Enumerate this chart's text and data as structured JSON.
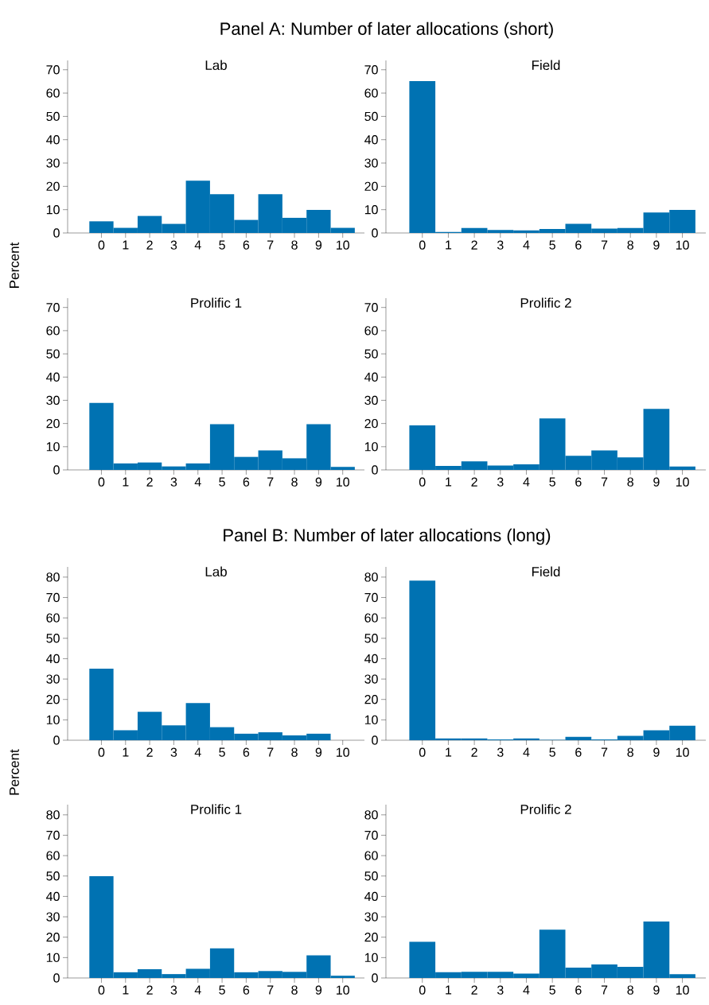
{
  "chart_data": [
    {
      "type": "bar",
      "title": "Panel A: Number of later allocations (short)",
      "subtitle": "Lab",
      "ylabel": "Percent",
      "categories": [
        "0",
        "1",
        "2",
        "3",
        "4",
        "5",
        "6",
        "7",
        "8",
        "9",
        "10"
      ],
      "values": [
        5,
        2.2,
        7.3,
        3.9,
        22.4,
        16.6,
        5.6,
        16.6,
        6.5,
        9.9,
        2.2
      ],
      "color": "#0072b2",
      "ylim": [
        0,
        74
      ],
      "yticks": [
        0,
        10,
        20,
        30,
        40,
        50,
        60,
        70
      ]
    },
    {
      "type": "bar",
      "subtitle": "Field",
      "categories": [
        "0",
        "1",
        "2",
        "3",
        "4",
        "5",
        "6",
        "7",
        "8",
        "9",
        "10"
      ],
      "values": [
        65.1,
        0.4,
        2.1,
        1.3,
        1.1,
        1.7,
        3.9,
        1.9,
        2.1,
        8.8,
        9.9
      ],
      "color": "#0072b2",
      "ylim": [
        0,
        74
      ],
      "yticks": [
        0,
        10,
        20,
        30,
        40,
        50,
        60,
        70
      ]
    },
    {
      "type": "bar",
      "subtitle": "Prolific 1",
      "categories": [
        "0",
        "1",
        "2",
        "3",
        "4",
        "5",
        "6",
        "7",
        "8",
        "9",
        "10"
      ],
      "values": [
        28.9,
        2.8,
        3.2,
        1.5,
        2.8,
        19.7,
        5.6,
        8.4,
        5.0,
        19.7,
        1.3
      ],
      "color": "#0072b2",
      "ylim": [
        0,
        74
      ],
      "yticks": [
        0,
        10,
        20,
        30,
        40,
        50,
        60,
        70
      ]
    },
    {
      "type": "bar",
      "subtitle": "Prolific 2",
      "categories": [
        "0",
        "1",
        "2",
        "3",
        "4",
        "5",
        "6",
        "7",
        "8",
        "9",
        "10"
      ],
      "values": [
        19.2,
        1.7,
        3.7,
        1.9,
        2.4,
        22.2,
        6.1,
        8.4,
        5.4,
        26.3,
        1.5
      ],
      "color": "#0072b2",
      "ylim": [
        0,
        74
      ],
      "yticks": [
        0,
        10,
        20,
        30,
        40,
        50,
        60,
        70
      ]
    },
    {
      "type": "bar",
      "title": "Panel B: Number of later allocations (long)",
      "subtitle": "Lab",
      "ylabel": "Percent",
      "categories": [
        "0",
        "1",
        "2",
        "3",
        "4",
        "5",
        "6",
        "7",
        "8",
        "9",
        "10"
      ],
      "values": [
        35.1,
        4.9,
        13.9,
        7.3,
        18.2,
        6.4,
        3.2,
        3.9,
        2.4,
        3.2,
        0
      ],
      "color": "#0072b2",
      "ylim": [
        0,
        85
      ],
      "yticks": [
        0,
        10,
        20,
        30,
        40,
        50,
        60,
        70,
        80
      ]
    },
    {
      "type": "bar",
      "subtitle": "Field",
      "categories": [
        "0",
        "1",
        "2",
        "3",
        "4",
        "5",
        "6",
        "7",
        "8",
        "9",
        "10"
      ],
      "values": [
        78.3,
        0.9,
        0.9,
        0.4,
        0.9,
        0.2,
        1.7,
        0.4,
        2.1,
        4.9,
        7.1
      ],
      "color": "#0072b2",
      "ylim": [
        0,
        85
      ],
      "yticks": [
        0,
        10,
        20,
        30,
        40,
        50,
        60,
        70,
        80
      ]
    },
    {
      "type": "bar",
      "subtitle": "Prolific 1",
      "categories": [
        "0",
        "1",
        "2",
        "3",
        "4",
        "5",
        "6",
        "7",
        "8",
        "9",
        "10"
      ],
      "values": [
        49.9,
        2.8,
        4.3,
        1.9,
        4.5,
        14.5,
        2.8,
        3.4,
        3.0,
        11.1,
        1.1
      ],
      "color": "#0072b2",
      "ylim": [
        0,
        85
      ],
      "yticks": [
        0,
        10,
        20,
        30,
        40,
        50,
        60,
        70,
        80
      ]
    },
    {
      "type": "bar",
      "subtitle": "Prolific 2",
      "categories": [
        "0",
        "1",
        "2",
        "3",
        "4",
        "5",
        "6",
        "7",
        "8",
        "9",
        "10"
      ],
      "values": [
        17.7,
        2.8,
        3.0,
        3.0,
        2.1,
        23.7,
        5.1,
        6.6,
        5.5,
        27.7,
        1.9
      ],
      "color": "#0072b2",
      "ylim": [
        0,
        85
      ],
      "yticks": [
        0,
        10,
        20,
        30,
        40,
        50,
        60,
        70,
        80
      ]
    }
  ]
}
